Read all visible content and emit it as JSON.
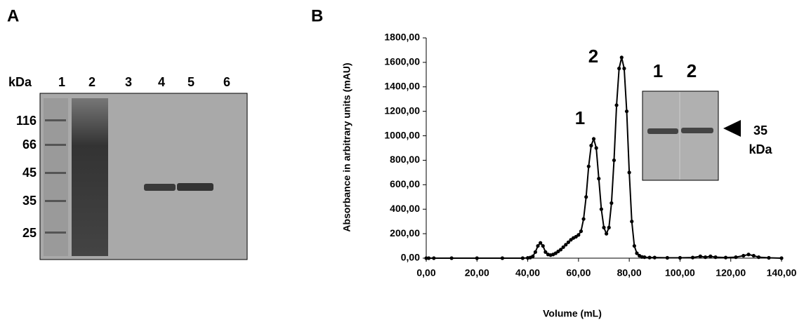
{
  "panel_a": {
    "letter": "A",
    "unit": "kDa",
    "lanes": [
      "1",
      "2",
      "3",
      "4",
      "5",
      "6"
    ],
    "markers": [
      116,
      66,
      45,
      35,
      25
    ]
  },
  "chart_data": {
    "type": "line",
    "letter": "B",
    "x_label": "Volume (mL)",
    "y_label": "Absorbance in arbitrary units (mAU)",
    "x": [
      0,
      1,
      3,
      10,
      20,
      30,
      38,
      40,
      41,
      42,
      43,
      44,
      45,
      46,
      47,
      48,
      49,
      50,
      51,
      52,
      53,
      54,
      55,
      56,
      57,
      58,
      59,
      60,
      61,
      62,
      63,
      64,
      65,
      66,
      67,
      68,
      69,
      70,
      71,
      72,
      73,
      74,
      75,
      76,
      77,
      78,
      79,
      80,
      81,
      82,
      83,
      84,
      85,
      86,
      88,
      90,
      95,
      100,
      105,
      108,
      110,
      112,
      114,
      118,
      122,
      125,
      127,
      129,
      131,
      135,
      140
    ],
    "series": [
      {
        "color": "#000000",
        "values": [
          0,
          0,
          0,
          0,
          0,
          0,
          0,
          2,
          5,
          15,
          50,
          100,
          125,
          100,
          50,
          30,
          25,
          30,
          40,
          55,
          70,
          90,
          110,
          130,
          150,
          165,
          175,
          190,
          220,
          320,
          500,
          750,
          920,
          975,
          900,
          650,
          400,
          250,
          200,
          250,
          450,
          800,
          1250,
          1550,
          1640,
          1550,
          1200,
          700,
          300,
          100,
          40,
          20,
          10,
          8,
          5,
          5,
          3,
          3,
          5,
          15,
          8,
          15,
          8,
          5,
          8,
          20,
          30,
          20,
          8,
          3,
          0
        ]
      }
    ],
    "xlim": [
      0,
      140
    ],
    "xticks": [
      {
        "value": 0,
        "label": "0,00"
      },
      {
        "value": 20,
        "label": "20,00"
      },
      {
        "value": 40,
        "label": "40,00"
      },
      {
        "value": 60,
        "label": "60,00"
      },
      {
        "value": 80,
        "label": "80,00"
      },
      {
        "value": 100,
        "label": "100,00"
      },
      {
        "value": 120,
        "label": "120,00"
      },
      {
        "value": 140,
        "label": "140,00"
      }
    ],
    "ylim": [
      0,
      1800
    ],
    "yticks": [
      {
        "value": 0,
        "label": "0,00"
      },
      {
        "value": 200,
        "label": "200,00"
      },
      {
        "value": 400,
        "label": "400,00"
      },
      {
        "value": 600,
        "label": "600,00"
      },
      {
        "value": 800,
        "label": "800,00"
      },
      {
        "value": 1000,
        "label": "1000,00"
      },
      {
        "value": 1200,
        "label": "1200,00"
      },
      {
        "value": 1400,
        "label": "1400,00"
      },
      {
        "value": 1600,
        "label": "1600,00"
      },
      {
        "value": 1800,
        "label": "1800,00"
      }
    ],
    "peak_labels": [
      "1",
      "2"
    ],
    "inset": {
      "lanes": [
        "1",
        "2"
      ],
      "band_size": "35",
      "band_unit": "kDa"
    }
  }
}
